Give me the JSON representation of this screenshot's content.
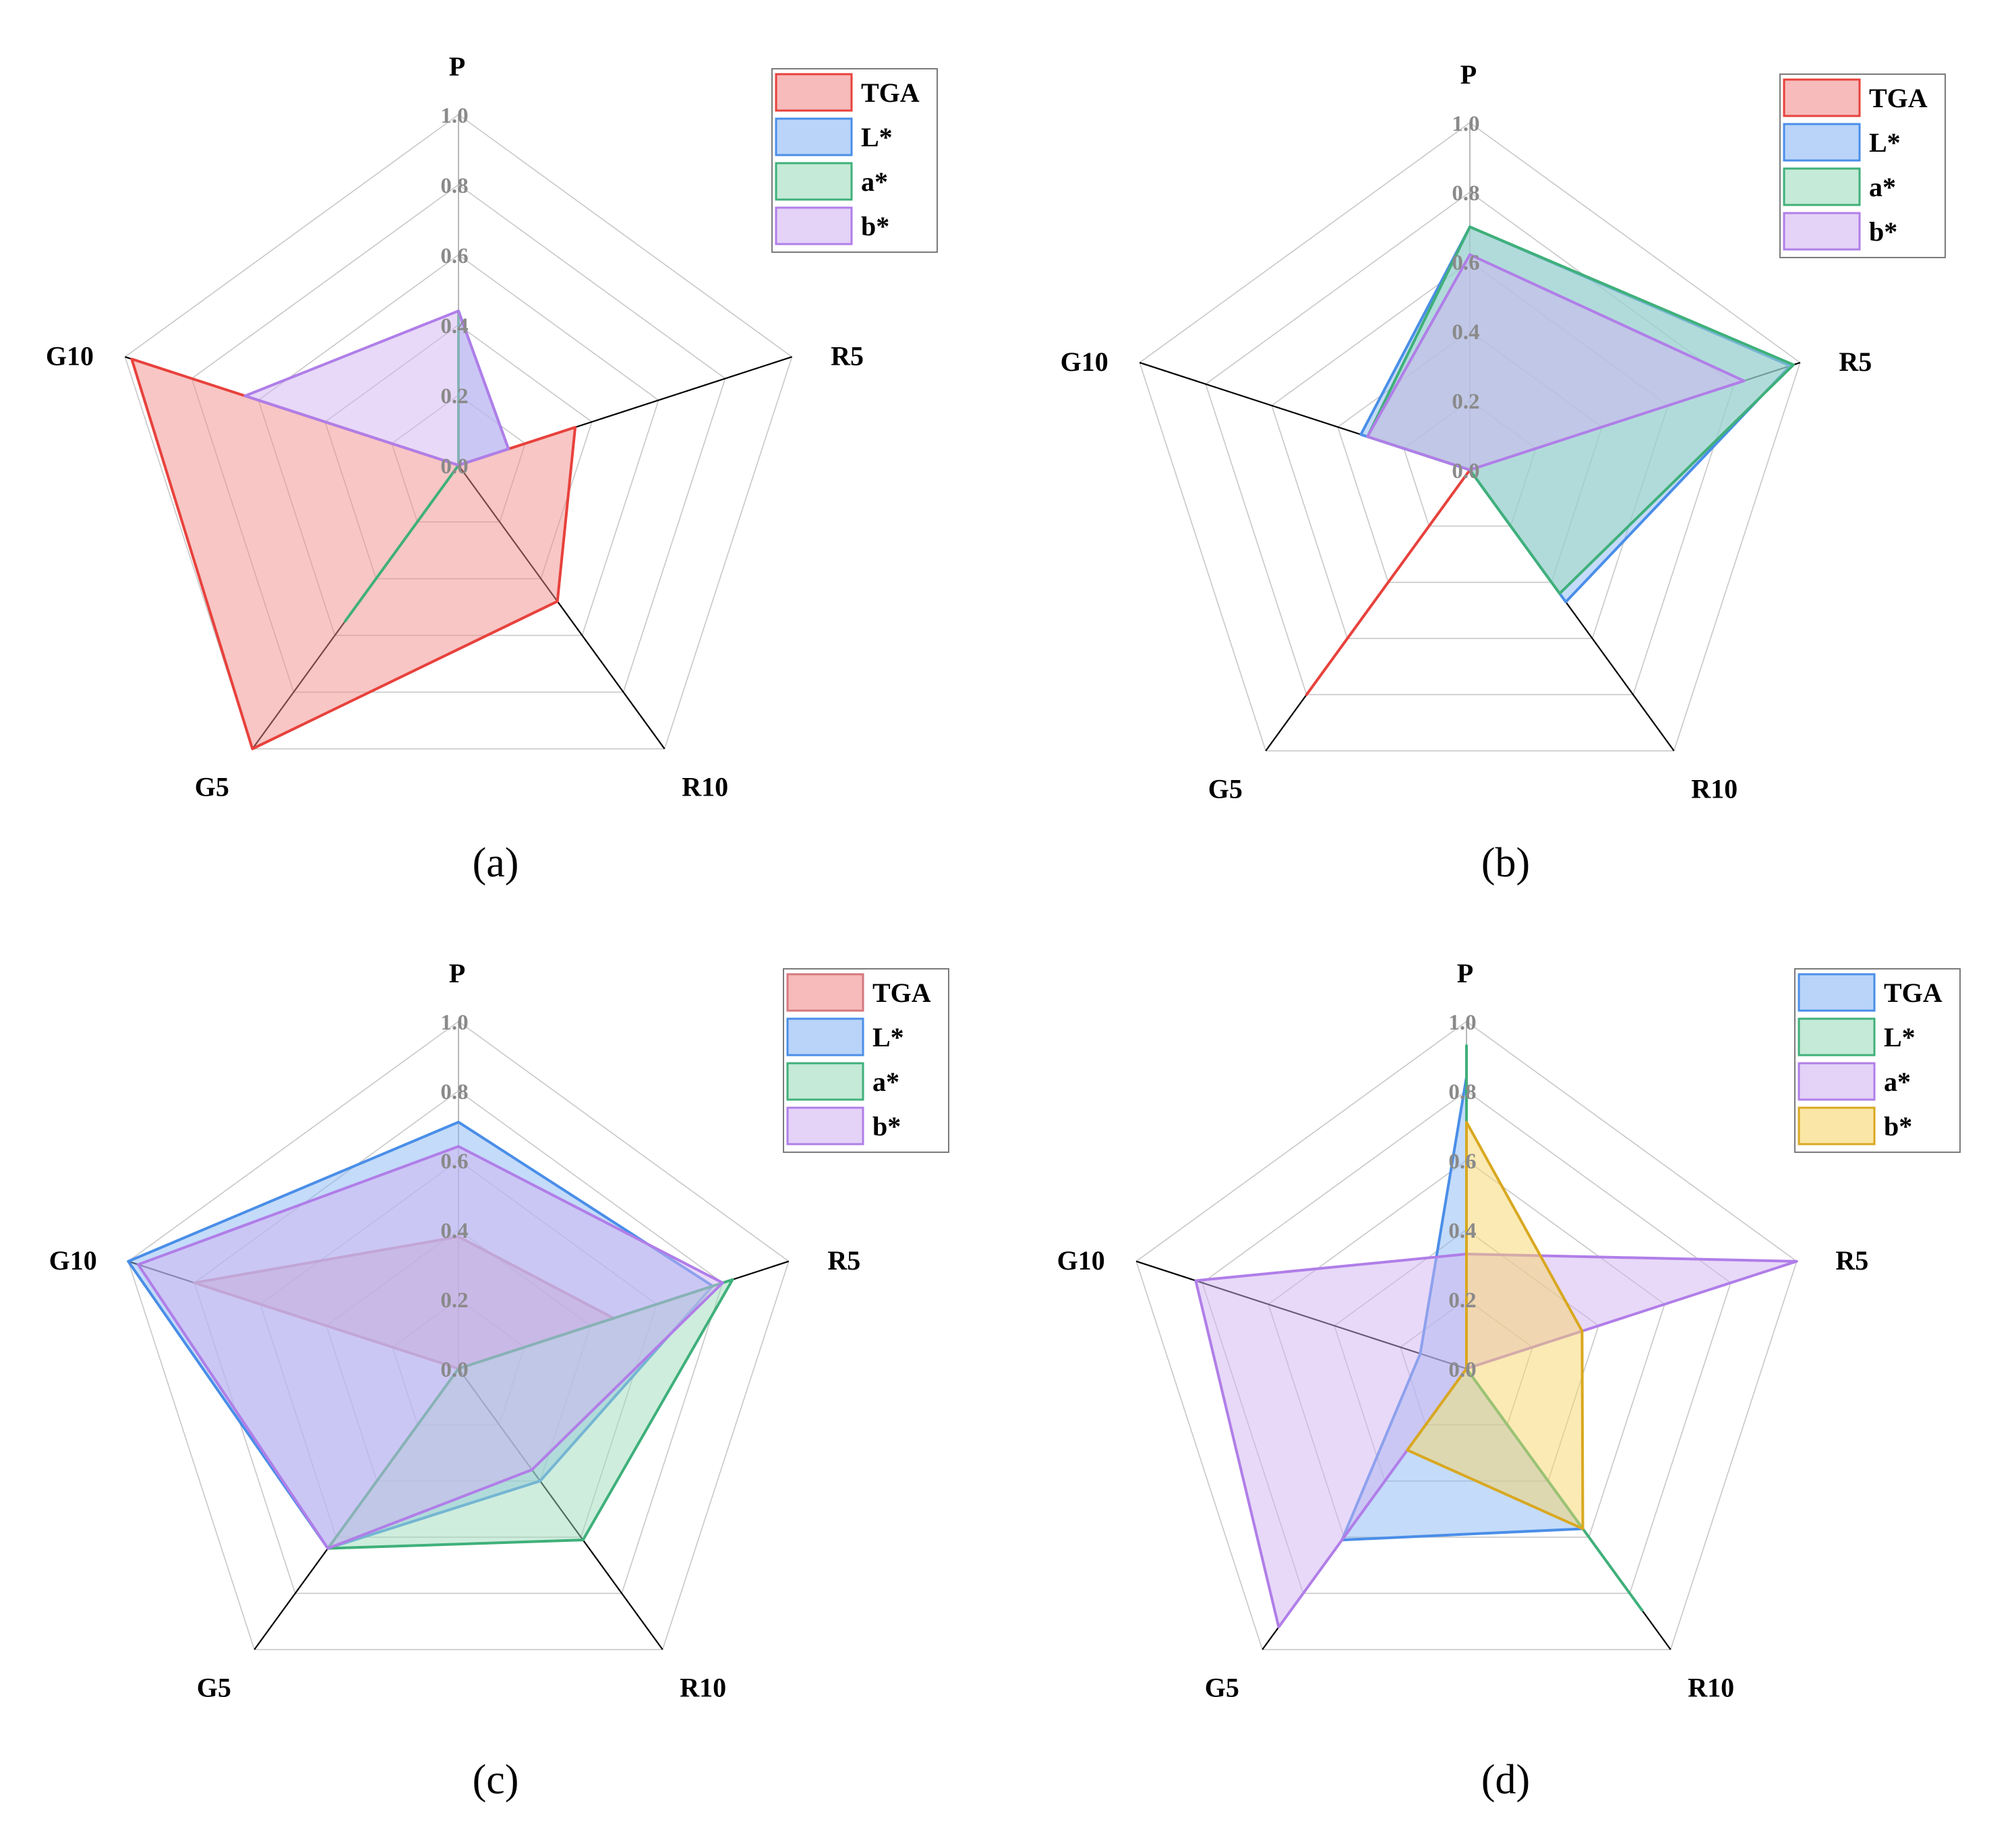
{
  "chart_data": [
    {
      "type": "radar",
      "panel_label": "(a)",
      "axes": [
        "P",
        "R5",
        "R10",
        "G5",
        "G10"
      ],
      "rlim": [
        0,
        1.0
      ],
      "ticks": [
        "0.0",
        "0.2",
        "0.4",
        "0.6",
        "0.8",
        "1.0"
      ],
      "legend_position": "top-right",
      "series": [
        {
          "name": "TGA",
          "color": "#e8413c",
          "fill": "#f08e8c",
          "values": [
            0.0,
            0.35,
            0.48,
            1.0,
            0.98
          ]
        },
        {
          "name": "L*",
          "color": "#4a8ee8",
          "fill": "#8ab8f4",
          "values": [
            0.44,
            0.15,
            0.0,
            0.0,
            0.0
          ]
        },
        {
          "name": "a*",
          "color": "#3fb07a",
          "fill": "#9edcbc",
          "values": [
            0.44,
            0.0,
            0.0,
            0.55,
            0.0
          ]
        },
        {
          "name": "b*",
          "color": "#b07ee8",
          "fill": "#d2b4f2",
          "values": [
            0.44,
            0.15,
            0.0,
            0.0,
            0.64
          ]
        }
      ]
    },
    {
      "type": "radar",
      "panel_label": "(b)",
      "axes": [
        "P",
        "R5",
        "R10",
        "G5",
        "G10"
      ],
      "rlim": [
        0,
        1.0
      ],
      "ticks": [
        "0.0",
        "0.2",
        "0.4",
        "0.6",
        "0.8",
        "1.0"
      ],
      "legend_position": "top-right",
      "series": [
        {
          "name": "TGA",
          "color": "#e8413c",
          "fill": "#f08e8c",
          "values": [
            0.0,
            0.0,
            0.0,
            0.8,
            0.0
          ]
        },
        {
          "name": "L*",
          "color": "#4a8ee8",
          "fill": "#8ab8f4",
          "values": [
            0.7,
            0.97,
            0.47,
            0.0,
            0.33
          ]
        },
        {
          "name": "a*",
          "color": "#3fb07a",
          "fill": "#9edcbc",
          "values": [
            0.7,
            0.98,
            0.44,
            0.0,
            0.31
          ]
        },
        {
          "name": "b*",
          "color": "#b07ee8",
          "fill": "#d2b4f2",
          "values": [
            0.62,
            0.83,
            0.0,
            0.0,
            0.31
          ]
        }
      ]
    },
    {
      "type": "radar",
      "panel_label": "(c)",
      "axes": [
        "P",
        "R5",
        "R10",
        "G5",
        "G10"
      ],
      "rlim": [
        0,
        1.0
      ],
      "ticks": [
        "0.0",
        "0.2",
        "0.4",
        "0.6",
        "0.8",
        "1.0"
      ],
      "legend_position": "top-right",
      "series": [
        {
          "name": "TGA",
          "color": "#d67880",
          "fill": "#f08e8c",
          "values": [
            0.38,
            0.47,
            0.0,
            0.0,
            0.8
          ]
        },
        {
          "name": "L*",
          "color": "#4a8ee8",
          "fill": "#8ab8f4",
          "values": [
            0.71,
            0.77,
            0.4,
            0.64,
            1.0
          ]
        },
        {
          "name": "a*",
          "color": "#3fb07a",
          "fill": "#9edcbc",
          "values": [
            0.0,
            0.83,
            0.61,
            0.64,
            0.0
          ]
        },
        {
          "name": "b*",
          "color": "#b07ee8",
          "fill": "#d2b4f2",
          "values": [
            0.64,
            0.8,
            0.36,
            0.64,
            0.97
          ]
        }
      ]
    },
    {
      "type": "radar",
      "panel_label": "(d)",
      "axes": [
        "P",
        "R5",
        "R10",
        "G5",
        "G10"
      ],
      "rlim": [
        0,
        1.0
      ],
      "ticks": [
        "0.0",
        "0.2",
        "0.4",
        "0.6",
        "0.8",
        "1.0"
      ],
      "legend_position": "top-right",
      "series": [
        {
          "name": "TGA",
          "color": "#4a8ee8",
          "fill": "#8ab8f4",
          "values": [
            0.84,
            0.0,
            0.57,
            0.61,
            0.14
          ]
        },
        {
          "name": "L*",
          "color": "#3fb07a",
          "fill": "#9edcbc",
          "values": [
            0.93,
            0.0,
            0.86,
            0.0,
            0.0
          ]
        },
        {
          "name": "a*",
          "color": "#b07ee8",
          "fill": "#d2b4f2",
          "values": [
            0.33,
            1.0,
            0.0,
            0.92,
            0.82
          ]
        },
        {
          "name": "b*",
          "color": "#d9a820",
          "fill": "#f7d56a",
          "values": [
            0.71,
            0.35,
            0.57,
            0.29,
            0.0
          ]
        }
      ]
    }
  ]
}
